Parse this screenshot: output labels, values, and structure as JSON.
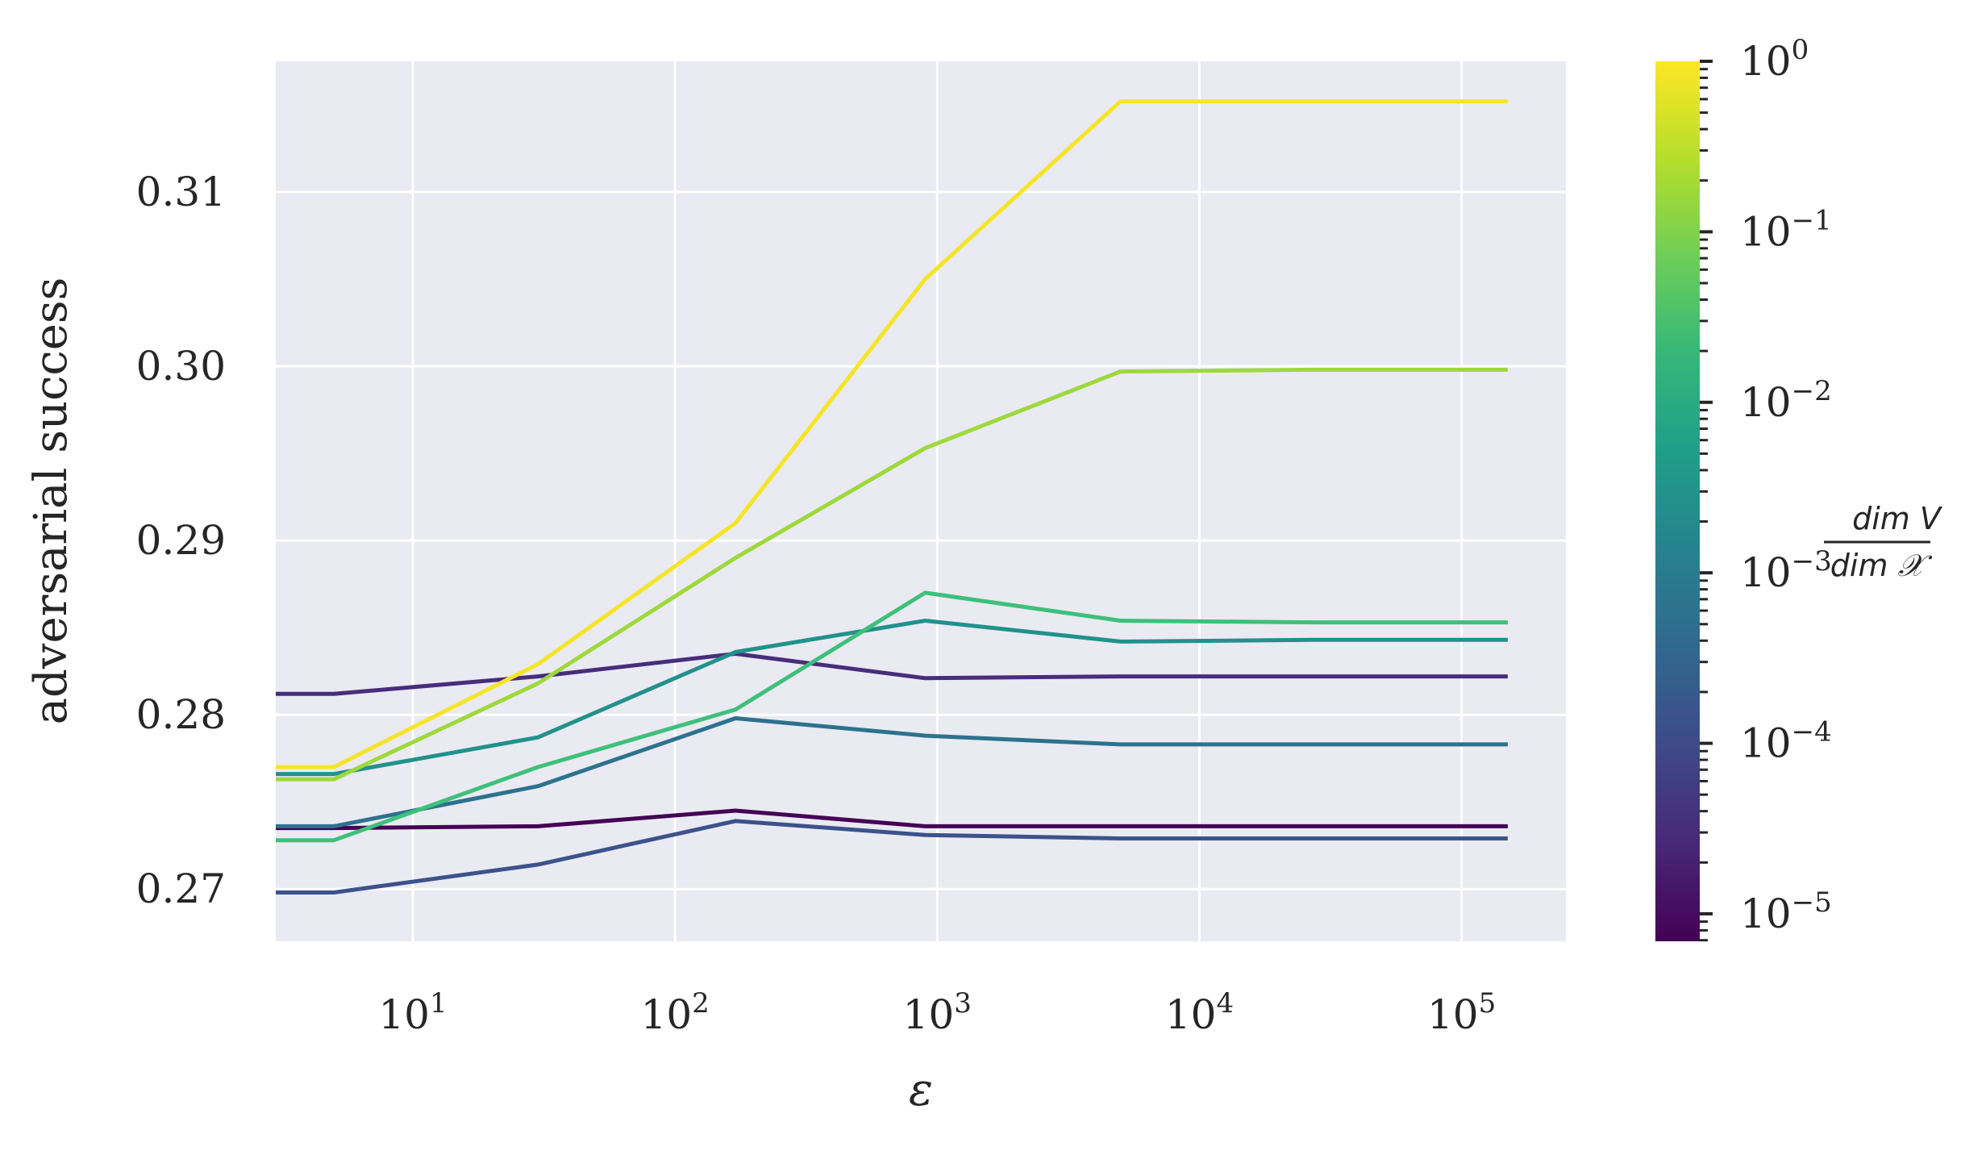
{
  "chart_data": {
    "type": "line",
    "xlabel": "ε",
    "ylabel": "adversarial success",
    "xscale": "log",
    "xlim": [
      3,
      250000
    ],
    "ylim": [
      0.267,
      0.3175
    ],
    "grid": true,
    "x_ticks": [
      {
        "value": 10,
        "base": "10",
        "exp": "1"
      },
      {
        "value": 100,
        "base": "10",
        "exp": "2"
      },
      {
        "value": 1000,
        "base": "10",
        "exp": "3"
      },
      {
        "value": 10000,
        "base": "10",
        "exp": "4"
      },
      {
        "value": 100000,
        "base": "10",
        "exp": "5"
      }
    ],
    "y_ticks": [
      {
        "value": 0.27,
        "label": "0.27"
      },
      {
        "value": 0.28,
        "label": "0.28"
      },
      {
        "value": 0.29,
        "label": "0.29"
      },
      {
        "value": 0.3,
        "label": "0.30"
      },
      {
        "value": 0.31,
        "label": "0.31"
      }
    ],
    "x": [
      3,
      5,
      30,
      170,
      900,
      5000,
      27000,
      150000
    ],
    "series": [
      {
        "color": "#440154",
        "values": [
          0.2735,
          0.2735,
          0.2736,
          0.2745,
          0.2736,
          0.2736,
          0.2736,
          0.2736
        ]
      },
      {
        "color": "#472d7b",
        "values": [
          0.2812,
          0.2812,
          0.2822,
          0.2835,
          0.2821,
          0.2822,
          0.2822,
          0.2822
        ]
      },
      {
        "color": "#3b528b",
        "values": [
          0.2698,
          0.2698,
          0.2714,
          0.2739,
          0.2731,
          0.2729,
          0.2729,
          0.2729
        ]
      },
      {
        "color": "#2c728e",
        "values": [
          0.2736,
          0.2736,
          0.2759,
          0.2798,
          0.2788,
          0.2783,
          0.2783,
          0.2783
        ]
      },
      {
        "color": "#21918c",
        "values": [
          0.2766,
          0.2766,
          0.2787,
          0.2836,
          0.2854,
          0.2842,
          0.2843,
          0.2843
        ]
      },
      {
        "color": "#3ec07a",
        "values": [
          0.2728,
          0.2728,
          0.277,
          0.2803,
          0.287,
          0.2854,
          0.2853,
          0.2853
        ]
      },
      {
        "color": "#9dd93b",
        "values": [
          0.2763,
          0.2763,
          0.2818,
          0.289,
          0.2953,
          0.2997,
          0.2998,
          0.2998
        ]
      },
      {
        "color": "#f5e527",
        "values": [
          0.277,
          0.277,
          0.2829,
          0.291,
          0.305,
          0.3152,
          0.3152,
          0.3152
        ]
      }
    ],
    "colorbar": {
      "label_numerator": "dim V",
      "label_denominator": "dim 𝒳",
      "scale": "log",
      "range": [
        6.9e-06,
        1
      ],
      "colormap": "viridis",
      "stops": [
        "#440154",
        "#482878",
        "#3e4a89",
        "#31688e",
        "#26828e",
        "#1f9e89",
        "#35b779",
        "#6ece58",
        "#b5de2b",
        "#fde725"
      ],
      "ticks": [
        {
          "value": 1,
          "base": "10",
          "exp": "0"
        },
        {
          "value": 0.1,
          "base": "10",
          "exp": "−1"
        },
        {
          "value": 0.01,
          "base": "10",
          "exp": "−2"
        },
        {
          "value": 0.001,
          "base": "10",
          "exp": "−3"
        },
        {
          "value": 0.0001,
          "base": "10",
          "exp": "−4"
        },
        {
          "value": 1e-05,
          "base": "10",
          "exp": "−5"
        }
      ]
    }
  }
}
